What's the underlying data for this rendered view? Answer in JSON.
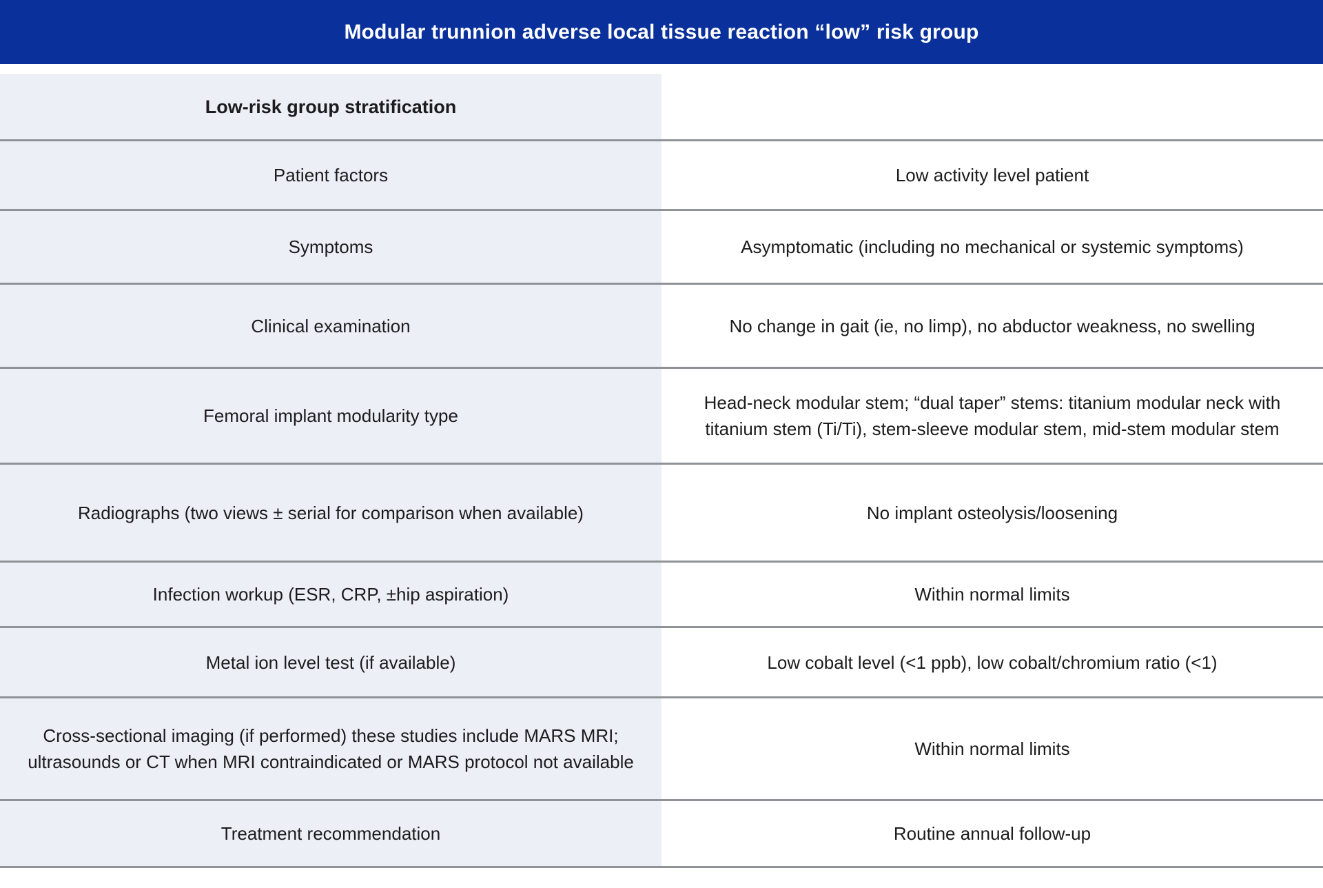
{
  "title_bar": {
    "title": "Modular trunnion adverse local tissue reaction “low” risk group"
  },
  "table": {
    "section_header": {
      "label": "Low-risk group stratification",
      "value": ""
    },
    "rows": [
      {
        "label": "Patient factors",
        "value": "Low activity level patient"
      },
      {
        "label": "Symptoms",
        "value": "Asymptomatic (including no mechanical or systemic symptoms)"
      },
      {
        "label": "Clinical examination",
        "value": "No change in gait (ie, no limp), no abductor weakness, no swelling"
      },
      {
        "label": "Femoral implant modularity type",
        "value": "Head-neck modular stem; “dual taper” stems: titanium modular neck with titanium stem (Ti/Ti), stem-sleeve modular stem, mid-stem modular stem"
      },
      {
        "label": "Radiographs (two views ± serial for comparison when available)",
        "value": "No implant osteolysis/loosening"
      },
      {
        "label": "Infection workup (ESR, CRP, ±hip aspiration)",
        "value": "Within normal limits"
      },
      {
        "label": "Metal ion level test (if available)",
        "value": "Low cobalt level (<1 ppb), low cobalt/chromium ratio (<1)"
      },
      {
        "label": "Cross-sectional imaging (if performed) these studies include MARS MRI; ultrasounds or CT when MRI contraindicated or MARS protocol not available",
        "value": "Within normal limits"
      },
      {
        "label": "Treatment recommendation",
        "value": "Routine annual follow-up"
      }
    ]
  },
  "colors": {
    "title_bar_bg": "#0A309B",
    "title_text": "#FFFFFF",
    "label_column_bg": "#ECEFF6",
    "value_column_bg": "#FFFFFF",
    "divider": "#8F9296",
    "body_text": "#1C1C1E"
  }
}
